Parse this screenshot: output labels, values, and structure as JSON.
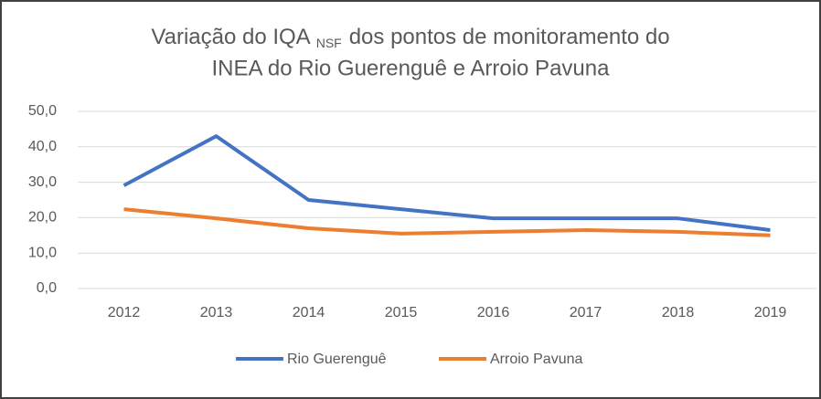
{
  "chart_data": {
    "type": "line",
    "title": {
      "before_subscript": "Variação do IQA",
      "subscript": "NSF",
      "after_subscript": "dos pontos de monitoramento do",
      "second_line": "INEA do Rio Guerenguê  e Arroio  Pavuna"
    },
    "categories": [
      "2012",
      "2013",
      "2014",
      "2015",
      "2016",
      "2017",
      "2018",
      "2019"
    ],
    "series": [
      {
        "name": "Rio Guerenguê",
        "color": "#4472c4",
        "values": [
          29.1,
          43,
          25,
          22.4,
          19.8,
          19.8,
          19.8,
          16.5
        ]
      },
      {
        "name": "Arroio Pavuna",
        "color": "#ed7d31",
        "values": [
          22.4,
          19.8,
          17,
          15.5,
          16,
          16.5,
          16,
          15
        ]
      }
    ],
    "ylim": [
      0,
      50
    ],
    "yticks": [
      {
        "value": 0,
        "label": "0,0"
      },
      {
        "value": 10,
        "label": "10,0"
      },
      {
        "value": 20,
        "label": "20,0"
      },
      {
        "value": 30,
        "label": "30,0"
      },
      {
        "value": 40,
        "label": "40,0"
      },
      {
        "value": 50,
        "label": "50,0"
      }
    ],
    "grid": true,
    "legend": "bottom"
  }
}
